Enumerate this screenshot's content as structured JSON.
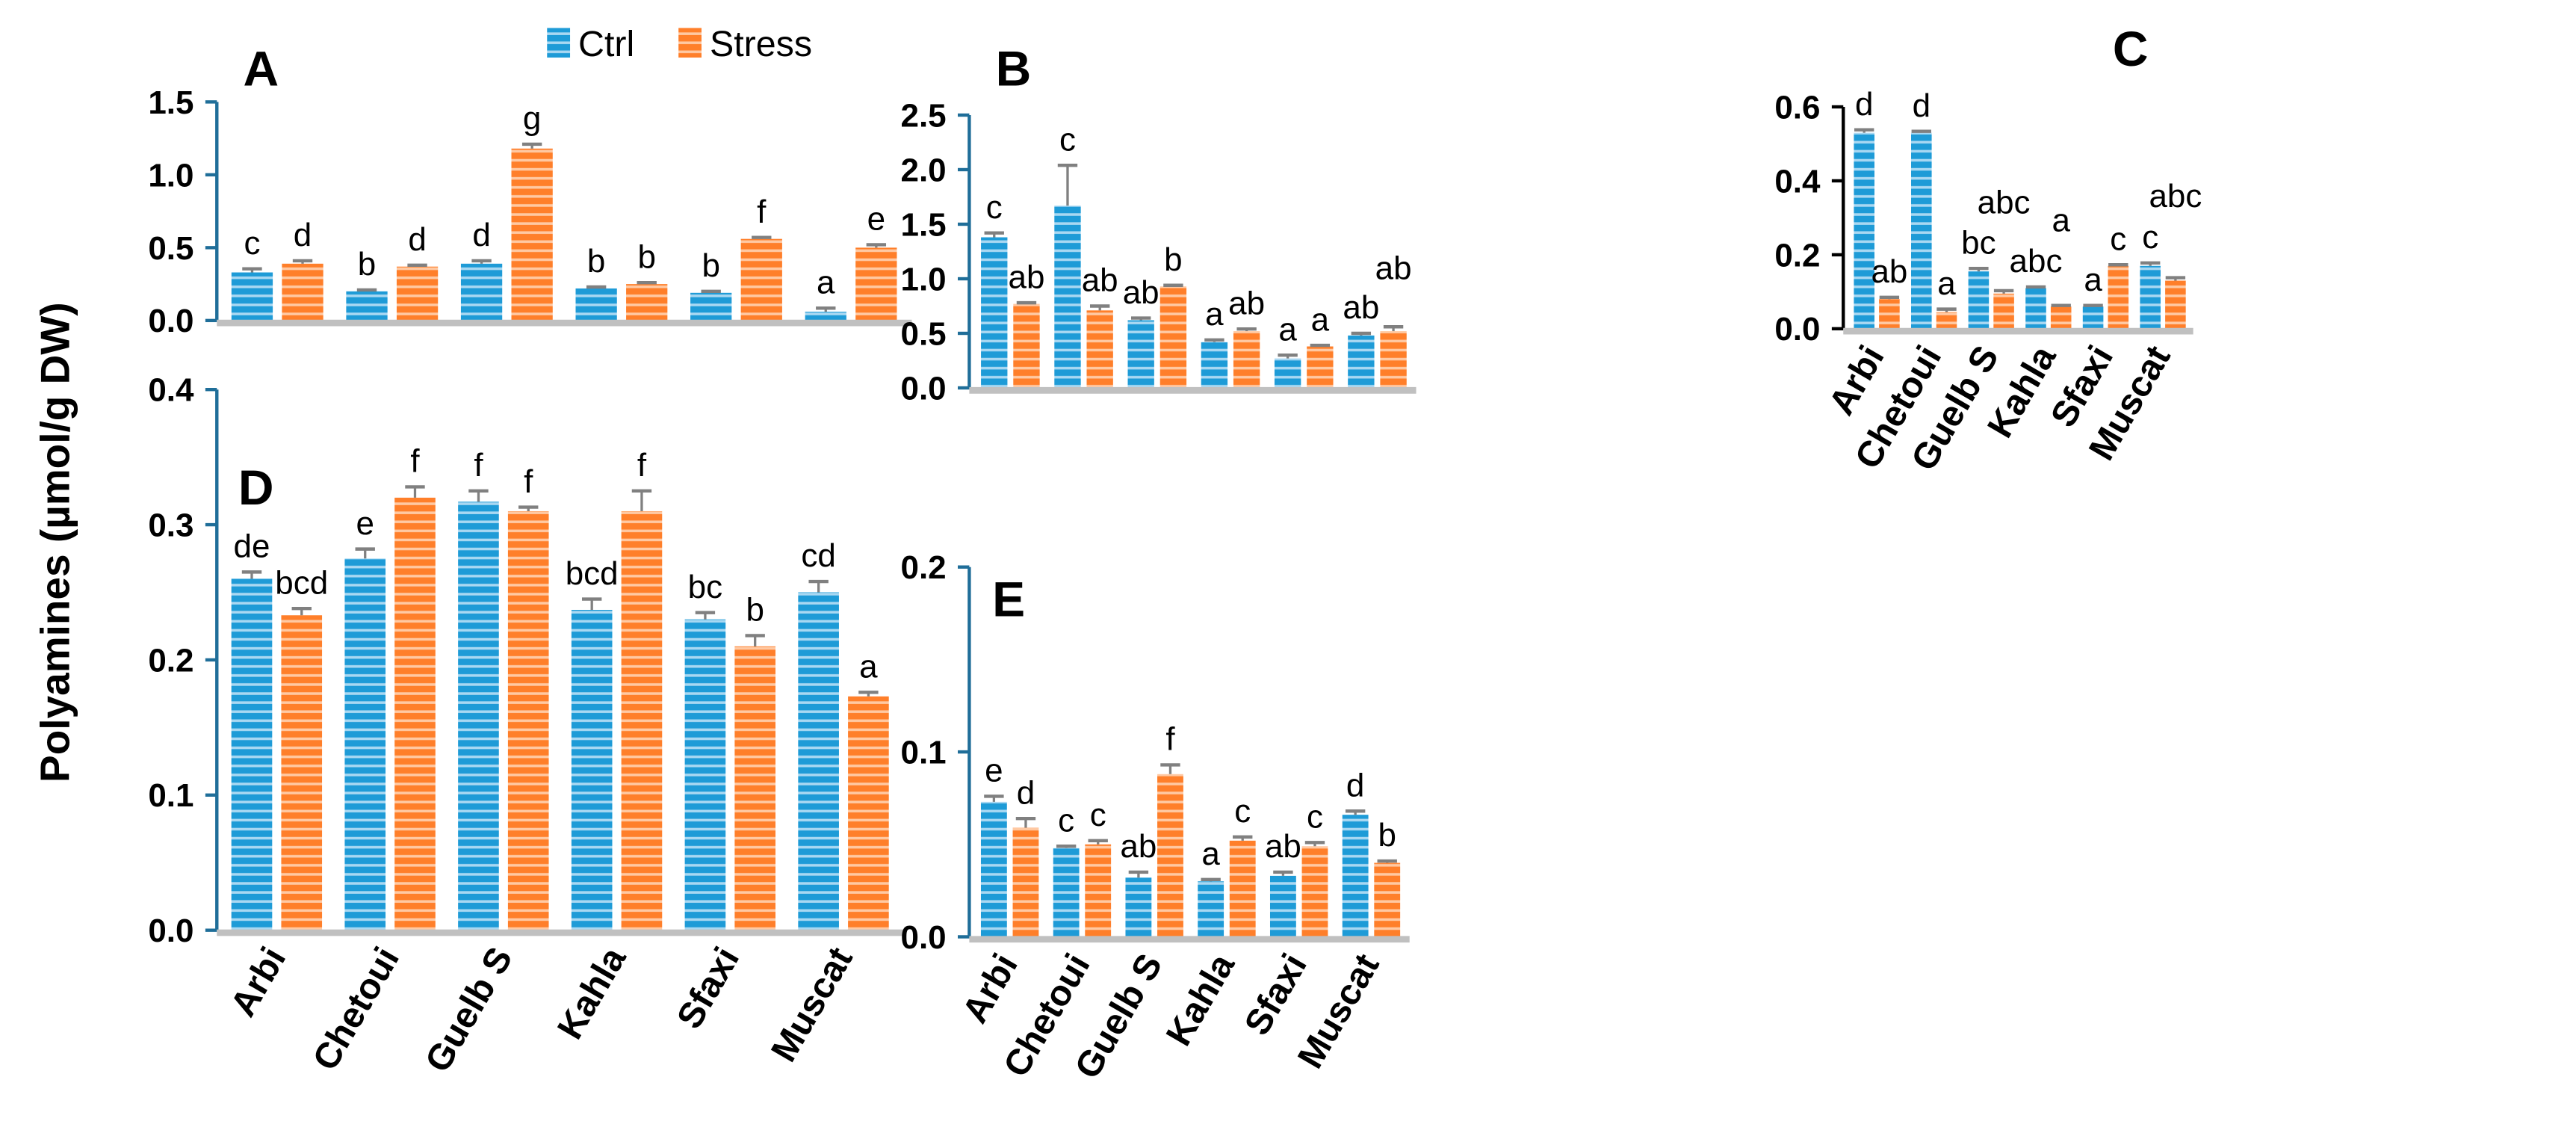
{
  "y_axis_title": "Polyamines (µmol/g DW)",
  "legend": {
    "ctrl": "Ctrl",
    "stress": "Stress",
    "placement": "top-right of panel A"
  },
  "colors": {
    "ctrl": "#1E9BD7",
    "ctrl_stripe": "#A9D8F2",
    "stress": "#FF7F2A",
    "stress_stripe": "#FFC9A3",
    "error_bar": "#808080",
    "baseline": "#C0C0C0",
    "axis": "#1F6E99"
  },
  "chart_data": [
    {
      "type": "bar",
      "panel": "A",
      "categories": [
        "Arbi",
        "Chetoui",
        "Guelb S",
        "Kahla",
        "Sfaxi",
        "Muscat"
      ],
      "ylim": [
        0,
        1.5
      ],
      "yticks": [
        "0.0",
        "0.5",
        "1.0",
        "1.5"
      ],
      "show_categories": false,
      "series": [
        {
          "name": "Ctrl",
          "values": [
            0.33,
            0.2,
            0.39,
            0.22,
            0.19,
            0.06
          ],
          "errors": [
            0.025,
            0.01,
            0.02,
            0.01,
            0.01,
            0.025
          ],
          "letters": [
            "c",
            "b",
            "d",
            "b",
            "b",
            "a"
          ]
        },
        {
          "name": "Stress",
          "values": [
            0.39,
            0.37,
            1.18,
            0.25,
            0.56,
            0.5
          ],
          "errors": [
            0.02,
            0.01,
            0.03,
            0.01,
            0.01,
            0.02
          ],
          "letters": [
            "d",
            "d",
            "g",
            "b",
            "f",
            "e"
          ]
        }
      ]
    },
    {
      "type": "bar",
      "panel": "B",
      "categories": [
        "Arbi",
        "Chetoui",
        "Guelb S",
        "Kahla",
        "Sfaxi",
        "Muscat"
      ],
      "ylim": [
        0,
        2.5
      ],
      "yticks": [
        "0.0",
        "0.5",
        "1.0",
        "1.5",
        "2.0",
        "2.5"
      ],
      "show_categories": false,
      "series": [
        {
          "name": "Ctrl",
          "values": [
            1.38,
            1.67,
            0.62,
            0.42,
            0.27,
            0.48
          ],
          "errors": [
            0.04,
            0.37,
            0.02,
            0.02,
            0.03,
            0.02
          ],
          "letters": [
            "c",
            "c",
            "ab",
            "a",
            "a",
            "ab"
          ]
        },
        {
          "name": "Stress",
          "values": [
            0.77,
            0.71,
            0.93,
            0.52,
            0.38,
            0.52
          ],
          "errors": [
            0.01,
            0.04,
            0.01,
            0.02,
            0.01,
            0.04
          ],
          "letters": [
            "ab",
            "ab",
            "b",
            "ab",
            "a",
            "ab"
          ]
        }
      ]
    },
    {
      "type": "bar",
      "panel": "C",
      "categories": [
        "Arbi",
        "Chetoui",
        "Guelb S",
        "Kahla",
        "Sfaxi",
        "Muscat"
      ],
      "ylim": [
        0,
        0.6
      ],
      "yticks": [
        "0.0",
        "0.2",
        "0.4",
        "0.6"
      ],
      "show_categories": true,
      "series": [
        {
          "name": "Ctrl",
          "values": [
            0.53,
            0.53,
            0.155,
            0.11,
            0.06,
            0.17
          ],
          "errors": [
            0.008,
            0.004,
            0.008,
            0.003,
            0.003,
            0.008
          ],
          "letters": [
            "d",
            "d",
            "bc",
            "abc",
            "a",
            "c"
          ]
        },
        {
          "name": "Stress",
          "values": [
            0.08,
            0.045,
            0.095,
            0.06,
            0.17,
            0.13
          ],
          "errors": [
            0.005,
            0.008,
            0.008,
            0.003,
            0.003,
            0.008
          ],
          "letters": [
            "ab",
            "a",
            "abc",
            "a",
            "c",
            "abc"
          ]
        }
      ]
    },
    {
      "type": "bar",
      "panel": "D",
      "categories": [
        "Arbi",
        "Chetoui",
        "Guelb S",
        "Kahla",
        "Sfaxi",
        "Muscat"
      ],
      "ylim": [
        0,
        0.4
      ],
      "yticks": [
        "0.0",
        "0.1",
        "0.2",
        "0.3",
        "0.4"
      ],
      "show_categories": true,
      "series": [
        {
          "name": "Ctrl",
          "values": [
            0.26,
            0.275,
            0.317,
            0.237,
            0.23,
            0.25
          ],
          "errors": [
            0.005,
            0.007,
            0.008,
            0.008,
            0.005,
            0.008
          ],
          "letters": [
            "de",
            "e",
            "f",
            "bcd",
            "bc",
            "cd"
          ]
        },
        {
          "name": "Stress",
          "values": [
            0.233,
            0.32,
            0.31,
            0.31,
            0.21,
            0.173
          ],
          "errors": [
            0.005,
            0.008,
            0.003,
            0.015,
            0.008,
            0.003
          ],
          "letters": [
            "bcd",
            "f",
            "f",
            "f",
            "b",
            "a"
          ]
        }
      ]
    },
    {
      "type": "bar",
      "panel": "E",
      "categories": [
        "Arbi",
        "Chetoui",
        "Guelb S",
        "Kahla",
        "Sfaxi",
        "Muscat"
      ],
      "ylim": [
        0,
        0.2
      ],
      "yticks": [
        "0.0",
        "0.1",
        "0.2"
      ],
      "show_categories": true,
      "series": [
        {
          "name": "Ctrl",
          "values": [
            0.073,
            0.048,
            0.032,
            0.03,
            0.033,
            0.066
          ],
          "errors": [
            0.003,
            0.001,
            0.003,
            0.001,
            0.002,
            0.002
          ],
          "letters": [
            "e",
            "c",
            "ab",
            "a",
            "ab",
            "d"
          ]
        },
        {
          "name": "Stress",
          "values": [
            0.059,
            0.05,
            0.088,
            0.052,
            0.049,
            0.04
          ],
          "errors": [
            0.005,
            0.002,
            0.005,
            0.002,
            0.002,
            0.001
          ],
          "letters": [
            "d",
            "c",
            "f",
            "c",
            "c",
            "b"
          ]
        }
      ]
    }
  ]
}
